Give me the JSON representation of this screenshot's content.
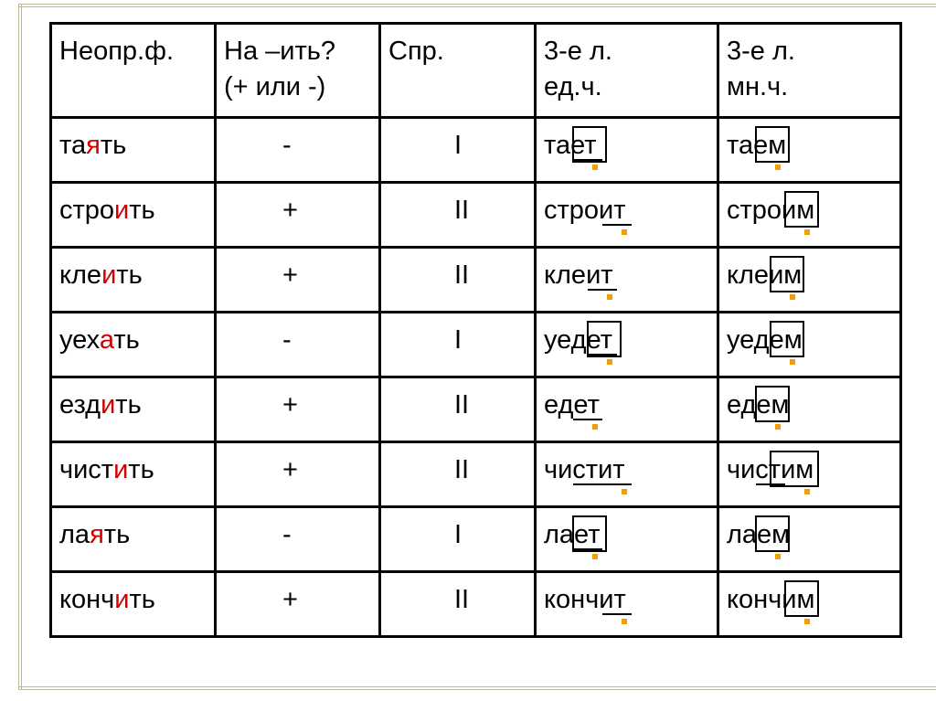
{
  "headers": {
    "c1": "Неопр.ф.",
    "c2a": "На –ить?",
    "c2b": "(+ или -)",
    "c3": "Спр.",
    "c4a": "3-е л.",
    "c4b": "ед.ч.",
    "c5a": "3-е л.",
    "c5b": "мн.ч."
  },
  "rows": [
    {
      "inf_pre": "та",
      "inf_hl": "я",
      "inf_post": "ть",
      "it": "-",
      "spr": "I",
      "f3s": "тает",
      "f3s_box_start": 2,
      "f3s_box_len": 2,
      "f3s_underline_start": 2,
      "f3s_underline_len": 2,
      "f3p": "таем",
      "f3p_box_start": 2,
      "f3p_box_len": 2,
      "f3p_underline_start": 0,
      "f3p_underline_len": 0
    },
    {
      "inf_pre": "стро",
      "inf_hl": "и",
      "inf_post": "ть",
      "it": "+",
      "spr": "II",
      "f3s": "строит",
      "f3s_box_start": 0,
      "f3s_box_len": 0,
      "f3s_underline_start": 4,
      "f3s_underline_len": 2,
      "f3p": "строим",
      "f3p_box_start": 4,
      "f3p_box_len": 2,
      "f3p_underline_start": 0,
      "f3p_underline_len": 0
    },
    {
      "inf_pre": "кле",
      "inf_hl": "и",
      "inf_post": "ть",
      "it": "+",
      "spr": "II",
      "f3s": "клеит",
      "f3s_box_start": 0,
      "f3s_box_len": 0,
      "f3s_underline_start": 3,
      "f3s_underline_len": 2,
      "f3p": "клеим",
      "f3p_box_start": 3,
      "f3p_box_len": 2,
      "f3p_underline_start": 0,
      "f3p_underline_len": 0
    },
    {
      "inf_pre": "уех",
      "inf_hl": "а",
      "inf_post": "ть",
      "it": "-",
      "spr": "I",
      "f3s": "уедет",
      "f3s_box_start": 3,
      "f3s_box_len": 2,
      "f3s_underline_start": 3,
      "f3s_underline_len": 2,
      "f3p": "уедем",
      "f3p_box_start": 3,
      "f3p_box_len": 2,
      "f3p_underline_start": 0,
      "f3p_underline_len": 0
    },
    {
      "inf_pre": "езд",
      "inf_hl": "и",
      "inf_post": "ть",
      "it": "+",
      "spr": "II",
      "f3s": "едет",
      "f3s_box_start": 0,
      "f3s_box_len": 0,
      "f3s_underline_start": 2,
      "f3s_underline_len": 2,
      "f3p": "едем",
      "f3p_box_start": 2,
      "f3p_box_len": 2,
      "f3p_underline_start": 0,
      "f3p_underline_len": 0
    },
    {
      "inf_pre": "чист",
      "inf_hl": "и",
      "inf_post": "ть",
      "it": "+",
      "spr": "II",
      "f3s": "чистит",
      "f3s_box_start": 0,
      "f3s_box_len": 0,
      "f3s_underline_start": 2,
      "f3s_underline_len": 4,
      "f3p": "чистим",
      "f3p_box_start": 3,
      "f3p_box_len": 3,
      "f3p_underline_start": 2,
      "f3p_underline_len": 2
    },
    {
      "inf_pre": "ла",
      "inf_hl": "я",
      "inf_post": "ть",
      "it": "-",
      "spr": "I",
      "f3s": "лает",
      "f3s_box_start": 2,
      "f3s_box_len": 2,
      "f3s_underline_start": 2,
      "f3s_underline_len": 2,
      "f3p": "лаем",
      "f3p_box_start": 2,
      "f3p_box_len": 2,
      "f3p_underline_start": 0,
      "f3p_underline_len": 0
    },
    {
      "inf_pre": "конч",
      "inf_hl": "и",
      "inf_post": "ть",
      "it": "+",
      "spr": "II",
      "f3s": "кончит",
      "f3s_box_start": 0,
      "f3s_box_len": 0,
      "f3s_underline_start": 4,
      "f3s_underline_len": 2,
      "f3p": "кончим",
      "f3p_box_start": 4,
      "f3p_box_len": 2,
      "f3p_underline_start": 0,
      "f3p_underline_len": 0
    }
  ],
  "style": {
    "highlight_color": "#d00000",
    "dot_color": "#f0a000",
    "border_color": "#000000",
    "font_size": 29,
    "char_width": 16
  }
}
